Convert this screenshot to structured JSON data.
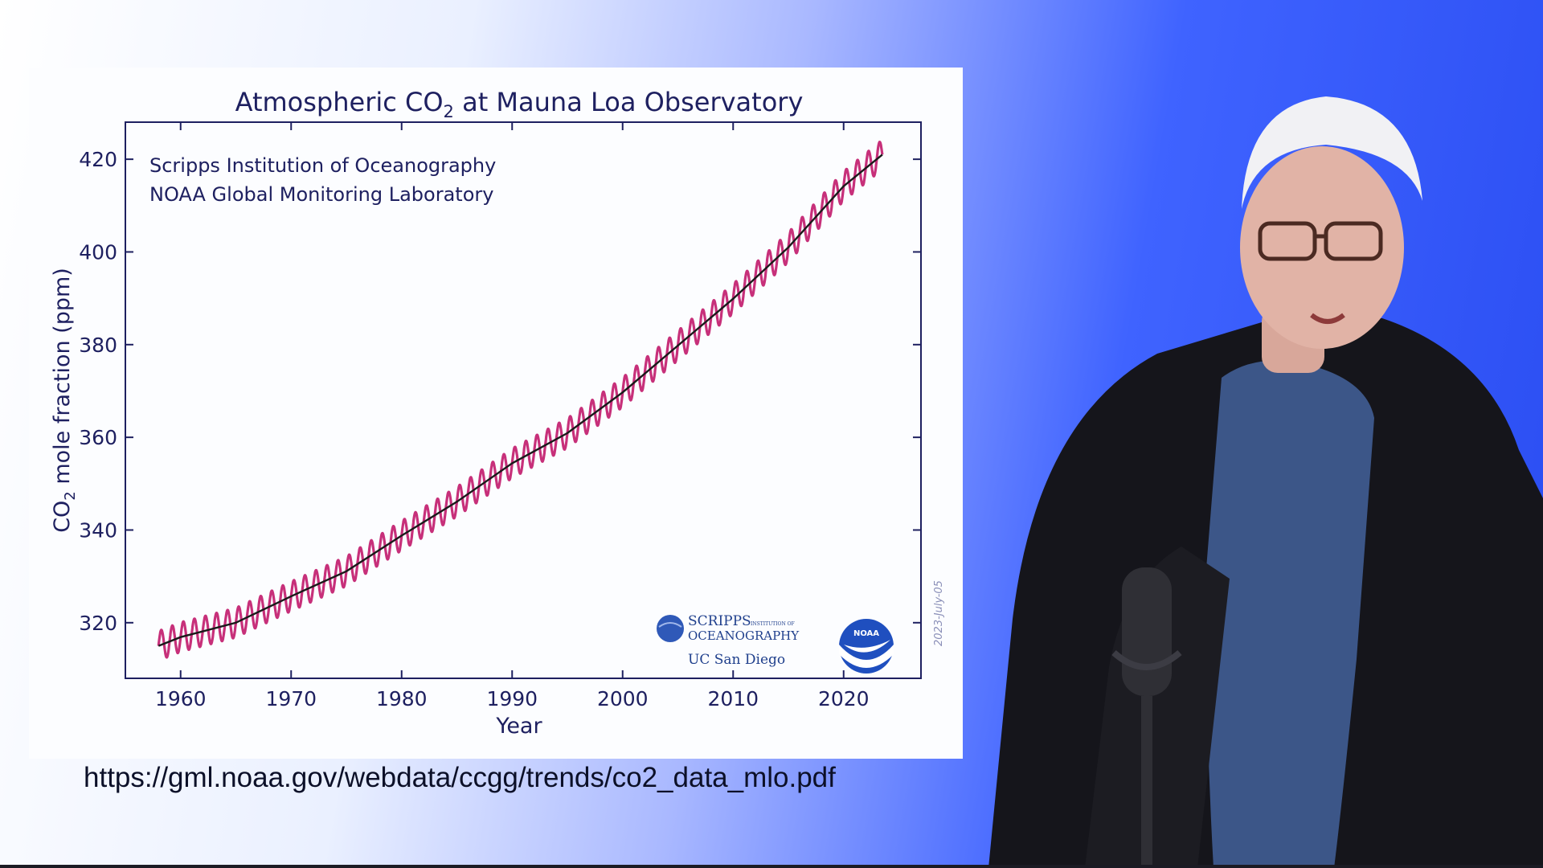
{
  "source_url": "https://gml.noaa.gov/webdata/ccgg/trends/co2_data_mlo.pdf",
  "colors": {
    "seasonal_line": "#c7307a",
    "trend_line": "#1a1a1a",
    "axis": "#1e2060",
    "background_left": "#ffffff",
    "background_right": "#2a4df2"
  },
  "logos": {
    "scripps_line1": "SCRIPPS",
    "scripps_small": "INSTITUTION OF",
    "scripps_line2": "OCEANOGRAPHY",
    "ucsd": "UC San Diego",
    "noaa": "NOAA"
  },
  "chart_data": {
    "type": "line",
    "title_prefix": "Atmospheric CO",
    "title_subscript": "2",
    "title_suffix": " at Mauna Loa Observatory",
    "xlabel": "Year",
    "ylabel_prefix": "CO",
    "ylabel_subscript": "2",
    "ylabel_suffix": " mole fraction (ppm)",
    "credits": [
      "Scripps Institution of Oceanography",
      "NOAA Global Monitoring Laboratory"
    ],
    "date_stamp": "2023-July-05",
    "xlim": [
      1955,
      2027
    ],
    "ylim": [
      308,
      428
    ],
    "x_ticks": [
      1960,
      1970,
      1980,
      1990,
      2000,
      2010,
      2020
    ],
    "y_ticks": [
      320,
      340,
      360,
      380,
      400,
      420
    ],
    "grid": false,
    "series": [
      {
        "role": "seasonal",
        "x": [
          1958,
          1960,
          1965,
          1970,
          1975,
          1980,
          1985,
          1990,
          1995,
          2000,
          2005,
          2010,
          2015,
          2020,
          2023.5
        ],
        "y": [
          315,
          316.9,
          320,
          325.7,
          331.1,
          338.8,
          346.1,
          354.4,
          360.9,
          369.7,
          379.8,
          389.9,
          401,
          414.2,
          421
        ],
        "amplitude": 3.2
      },
      {
        "role": "trend",
        "x": [
          1958,
          1960,
          1965,
          1970,
          1975,
          1980,
          1985,
          1990,
          1995,
          2000,
          2005,
          2010,
          2015,
          2020,
          2023.5
        ],
        "y": [
          315,
          316.9,
          320,
          325.7,
          331.1,
          338.8,
          346.1,
          354.4,
          360.9,
          369.7,
          379.8,
          389.9,
          401,
          414.2,
          421
        ]
      }
    ]
  }
}
